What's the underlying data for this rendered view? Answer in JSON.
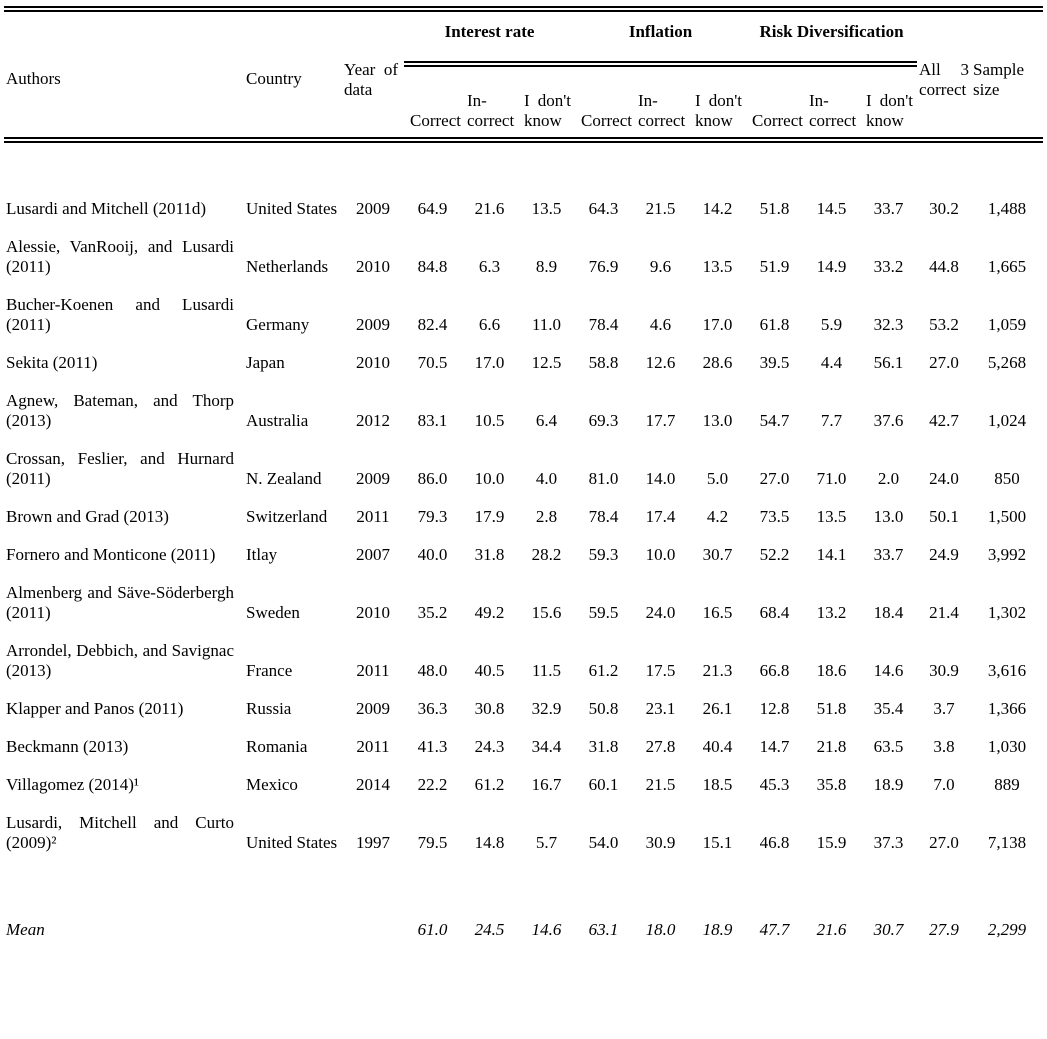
{
  "table": {
    "header": {
      "authors": "Authors",
      "country": "Country",
      "year": "Year of data",
      "groups": [
        {
          "label": "Interest rate"
        },
        {
          "label": "Inflation"
        },
        {
          "label": "Risk Diversification"
        }
      ],
      "sub": [
        "Correct",
        "In-correct",
        "I don't know"
      ],
      "all3": "All 3 correct",
      "sample": "Sample size"
    },
    "rows": [
      {
        "authors": "Lusardi and Mitchell (2011d)",
        "country": "United States",
        "year": "2009",
        "values": [
          "64.9",
          "21.6",
          "13.5",
          "64.3",
          "21.5",
          "14.2",
          "51.8",
          "14.5",
          "33.7",
          "30.2",
          "1,488"
        ]
      },
      {
        "authors": "Alessie, VanRooij, and Lusardi (2011)",
        "country": "Netherlands",
        "year": "2010",
        "values": [
          "84.8",
          "6.3",
          "8.9",
          "76.9",
          "9.6",
          "13.5",
          "51.9",
          "14.9",
          "33.2",
          "44.8",
          "1,665"
        ]
      },
      {
        "authors": "Bucher-Koenen and Lusardi (2011)",
        "country": "Germany",
        "year": "2009",
        "values": [
          "82.4",
          "6.6",
          "11.0",
          "78.4",
          "4.6",
          "17.0",
          "61.8",
          "5.9",
          "32.3",
          "53.2",
          "1,059"
        ]
      },
      {
        "authors": "Sekita (2011)",
        "country": "Japan",
        "year": "2010",
        "values": [
          "70.5",
          "17.0",
          "12.5",
          "58.8",
          "12.6",
          "28.6",
          "39.5",
          "4.4",
          "56.1",
          "27.0",
          "5,268"
        ]
      },
      {
        "authors": "Agnew, Bateman, and Thorp (2013)",
        "country": "Australia",
        "year": "2012",
        "values": [
          "83.1",
          "10.5",
          "6.4",
          "69.3",
          "17.7",
          "13.0",
          "54.7",
          "7.7",
          "37.6",
          "42.7",
          "1,024"
        ]
      },
      {
        "authors": "Crossan, Feslier, and Hurnard (2011)",
        "country": "N. Zealand",
        "year": "2009",
        "values": [
          "86.0",
          "10.0",
          "4.0",
          "81.0",
          "14.0",
          "5.0",
          "27.0",
          "71.0",
          "2.0",
          "24.0",
          "850"
        ]
      },
      {
        "authors": "Brown and Grad (2013)",
        "country": "Switzerland",
        "year": "2011",
        "values": [
          "79.3",
          "17.9",
          "2.8",
          "78.4",
          "17.4",
          "4.2",
          "73.5",
          "13.5",
          "13.0",
          "50.1",
          "1,500"
        ]
      },
      {
        "authors": "Fornero and Monticone (2011)",
        "country": "Itlay",
        "year": "2007",
        "values": [
          "40.0",
          "31.8",
          "28.2",
          "59.3",
          "10.0",
          "30.7",
          "52.2",
          "14.1",
          "33.7",
          "24.9",
          "3,992"
        ]
      },
      {
        "authors": "Almenberg and Säve-Söderbergh (2011)",
        "country": "Sweden",
        "year": "2010",
        "values": [
          "35.2",
          "49.2",
          "15.6",
          "59.5",
          "24.0",
          "16.5",
          "68.4",
          "13.2",
          "18.4",
          "21.4",
          "1,302"
        ]
      },
      {
        "authors": "Arrondel, Debbich, and Savignac (2013)",
        "country": "France",
        "year": "2011",
        "values": [
          "48.0",
          "40.5",
          "11.5",
          "61.2",
          "17.5",
          "21.3",
          "66.8",
          "18.6",
          "14.6",
          "30.9",
          "3,616"
        ]
      },
      {
        "authors": "Klapper and Panos (2011)",
        "country": "Russia",
        "year": "2009",
        "values": [
          "36.3",
          "30.8",
          "32.9",
          "50.8",
          "23.1",
          "26.1",
          "12.8",
          "51.8",
          "35.4",
          "3.7",
          "1,366"
        ]
      },
      {
        "authors": "Beckmann (2013)",
        "country": "Romania",
        "year": "2011",
        "values": [
          "41.3",
          "24.3",
          "34.4",
          "31.8",
          "27.8",
          "40.4",
          "14.7",
          "21.8",
          "63.5",
          "3.8",
          "1,030"
        ]
      },
      {
        "authors": "Villagomez (2014)¹",
        "country": "Mexico",
        "year": "2014",
        "values": [
          "22.2",
          "61.2",
          "16.7",
          "60.1",
          "21.5",
          "18.5",
          "45.3",
          "35.8",
          "18.9",
          "7.0",
          "889"
        ]
      },
      {
        "authors": "Lusardi, Mitchell and Curto (2009)²",
        "country": "United States",
        "year": "1997",
        "values": [
          "79.5",
          "14.8",
          "5.7",
          "54.0",
          "30.9",
          "15.1",
          "46.8",
          "15.9",
          "37.3",
          "27.0",
          "7,138"
        ]
      }
    ],
    "mean": {
      "authors": "Mean",
      "country": "",
      "year": "",
      "values": [
        "61.0",
        "24.5",
        "14.6",
        "63.1",
        "18.0",
        "18.9",
        "47.7",
        "21.6",
        "30.7",
        "27.9",
        "2,299"
      ]
    }
  }
}
